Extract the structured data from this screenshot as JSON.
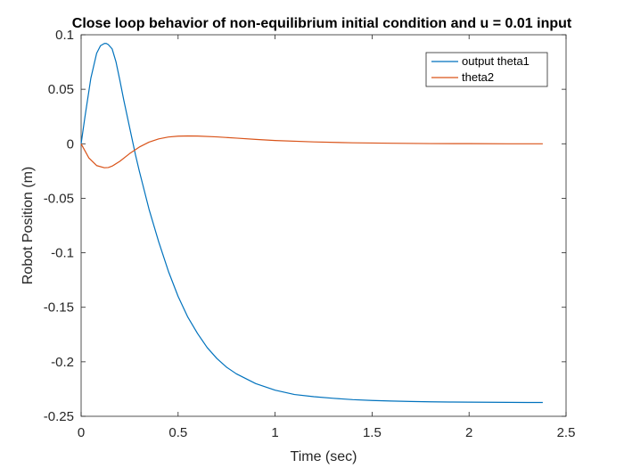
{
  "chart_data": {
    "type": "line",
    "title": "Close loop behavior of non-equilibrium initial condition and u = 0.01 input",
    "xlabel": "Time (sec)",
    "ylabel": "Robot Position (m)",
    "xlim": [
      0,
      2.5
    ],
    "ylim": [
      -0.25,
      0.1
    ],
    "xticks": [
      0,
      0.5,
      1,
      1.5,
      2,
      2.5
    ],
    "xtick_labels": [
      "0",
      "0.5",
      "1",
      "1.5",
      "2",
      "2.5"
    ],
    "yticks": [
      -0.25,
      -0.2,
      -0.15,
      -0.1,
      -0.05,
      0,
      0.05,
      0.1
    ],
    "ytick_labels": [
      "-0.25",
      "-0.2",
      "-0.15",
      "-0.1",
      "-0.05",
      "0",
      "0.05",
      "0.1"
    ],
    "grid": false,
    "legend_position": "top-right",
    "series": [
      {
        "name": "output theta1",
        "color": "#0072BD",
        "x": [
          0,
          0.02,
          0.05,
          0.08,
          0.1,
          0.12,
          0.13,
          0.14,
          0.16,
          0.18,
          0.2,
          0.22,
          0.25,
          0.28,
          0.3,
          0.35,
          0.4,
          0.45,
          0.5,
          0.55,
          0.6,
          0.65,
          0.7,
          0.75,
          0.8,
          0.9,
          1.0,
          1.1,
          1.2,
          1.3,
          1.4,
          1.5,
          1.6,
          1.7,
          1.8,
          1.9,
          2.0,
          2.1,
          2.2,
          2.3,
          2.38
        ],
        "y": [
          0,
          0.025,
          0.06,
          0.083,
          0.09,
          0.092,
          0.092,
          0.091,
          0.087,
          0.075,
          0.058,
          0.04,
          0.015,
          -0.01,
          -0.025,
          -0.06,
          -0.09,
          -0.117,
          -0.14,
          -0.159,
          -0.174,
          -0.187,
          -0.197,
          -0.205,
          -0.211,
          -0.22,
          -0.226,
          -0.23,
          -0.232,
          -0.2335,
          -0.2347,
          -0.2355,
          -0.236,
          -0.2364,
          -0.2367,
          -0.2369,
          -0.237,
          -0.2371,
          -0.2372,
          -0.2373,
          -0.2373
        ]
      },
      {
        "name": "theta2",
        "color": "#D95319",
        "x": [
          0,
          0.04,
          0.08,
          0.12,
          0.14,
          0.16,
          0.2,
          0.25,
          0.3,
          0.35,
          0.4,
          0.45,
          0.5,
          0.55,
          0.6,
          0.7,
          0.8,
          0.9,
          1.0,
          1.2,
          1.4,
          1.6,
          1.8,
          2.0,
          2.2,
          2.38
        ],
        "y": [
          0,
          -0.013,
          -0.02,
          -0.022,
          -0.0218,
          -0.0205,
          -0.016,
          -0.009,
          -0.003,
          0.0015,
          0.0045,
          0.0062,
          0.007,
          0.0072,
          0.0071,
          0.0063,
          0.0052,
          0.004,
          0.003,
          0.0017,
          0.0009,
          0.0005,
          0.0002,
          0.0001,
          0.0,
          0.0
        ]
      }
    ]
  }
}
